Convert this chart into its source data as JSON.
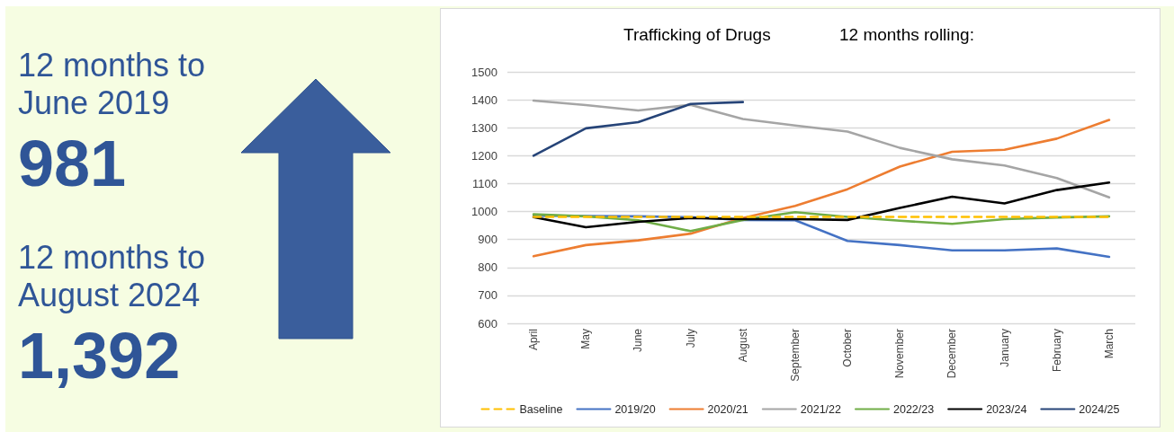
{
  "chart_data": [
    {
      "type": "other",
      "annotations": [
        "12 months to June 2019",
        "981",
        "12 months to August 2024",
        "1,392"
      ]
    },
    {
      "type": "line",
      "title": "Trafficking of Drugs",
      "subtitle": "12 months rolling:",
      "categories": [
        "April",
        "May",
        "June",
        "July",
        "August",
        "September",
        "October",
        "November",
        "December",
        "January",
        "February",
        "March"
      ],
      "series": [
        {
          "name": "Baseline",
          "color": "#ffc000",
          "line_style": "dashed",
          "values": [
            981,
            981,
            981,
            981,
            981,
            981,
            981,
            981,
            981,
            981,
            981,
            981
          ]
        },
        {
          "name": "2019/20",
          "color": "#4472c4",
          "values": [
            985,
            984,
            983,
            980,
            970,
            969,
            895,
            880,
            861,
            861,
            868,
            838
          ]
        },
        {
          "name": "2020/21",
          "color": "#ed7d31",
          "values": [
            840,
            880,
            897,
            921,
            977,
            1020,
            1080,
            1161,
            1214,
            1221,
            1261,
            1328
          ]
        },
        {
          "name": "2021/22",
          "color": "#a5a5a5",
          "values": [
            1397,
            1381,
            1362,
            1382,
            1331,
            1308,
            1286,
            1228,
            1187,
            1165,
            1120,
            1051
          ]
        },
        {
          "name": "2022/23",
          "color": "#70ad47",
          "values": [
            990,
            983,
            969,
            930,
            970,
            998,
            981,
            967,
            956,
            973,
            979,
            983
          ]
        },
        {
          "name": "2023/24",
          "color": "#000000",
          "values": [
            980,
            944,
            963,
            977,
            973,
            973,
            970,
            1013,
            1053,
            1029,
            1077,
            1104
          ]
        },
        {
          "name": "2024/25",
          "color": "#264478",
          "values": [
            1200,
            1298,
            1320,
            1385,
            1392,
            null,
            null,
            null,
            null,
            null,
            null,
            null
          ]
        }
      ],
      "ylim": [
        600,
        1500
      ],
      "yticks": [
        600,
        700,
        800,
        900,
        1000,
        1100,
        1200,
        1300,
        1400,
        1500
      ],
      "grid": "y",
      "legend": "bottom",
      "marker": "none"
    }
  ]
}
